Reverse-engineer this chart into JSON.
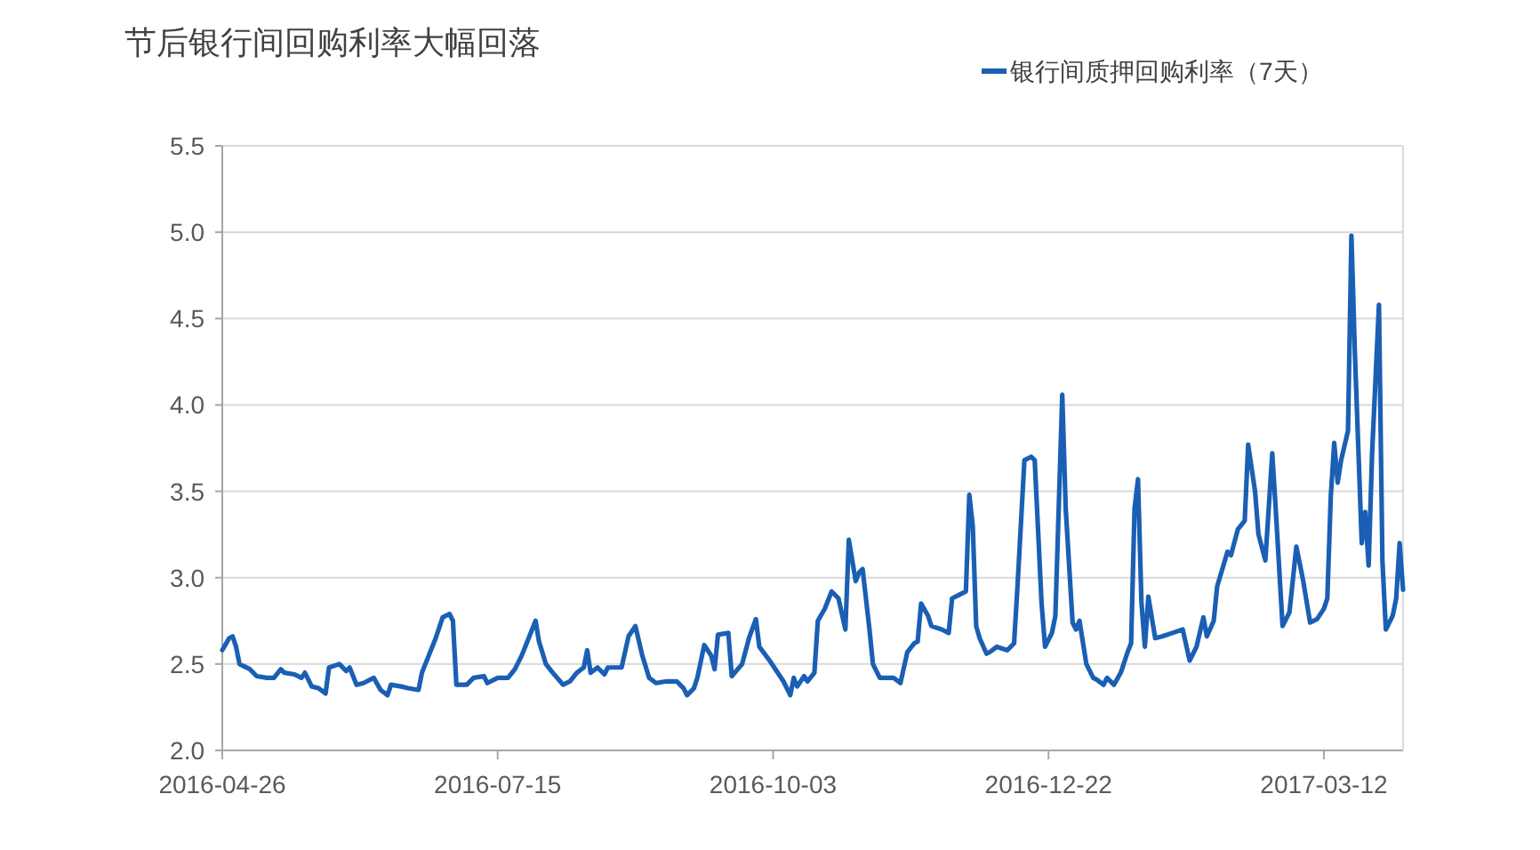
{
  "chart_data": {
    "type": "line",
    "title": "节后银行间回购利率大幅回落",
    "legend": "top right",
    "grid": "y",
    "xlim": [
      "2016-04-26",
      "2017-04-04"
    ],
    "xticks": [
      "2016-04-26",
      "2016-07-15",
      "2016-10-03",
      "2016-12-22",
      "2017-03-12"
    ],
    "ylim": [
      2.0,
      5.5
    ],
    "yticks": [
      {
        "value": 2,
        "label": "2.0"
      },
      2.5,
      {
        "value": 3,
        "label": "3.0"
      },
      3.5,
      {
        "value": 4,
        "label": "4.0"
      },
      4.5,
      {
        "value": 5,
        "label": "5.0"
      },
      5.5
    ],
    "series": [
      {
        "name": "银行间质押回购利率（7天）",
        "color": "#1a5fb4",
        "x": [
          "2016-04-26",
          "2016-04-28",
          "2016-04-29",
          "2016-04-30",
          "2016-05-01",
          "2016-05-04",
          "2016-05-06",
          "2016-05-09",
          "2016-05-11",
          "2016-05-13",
          "2016-05-14",
          "2016-05-17",
          "2016-05-19",
          "2016-05-20",
          "2016-05-22",
          "2016-05-24",
          "2016-05-26",
          "2016-05-27",
          "2016-05-30",
          "2016-06-01",
          "2016-06-02",
          "2016-06-04",
          "2016-06-06",
          "2016-06-09",
          "2016-06-11",
          "2016-06-13",
          "2016-06-14",
          "2016-06-17",
          "2016-06-19",
          "2016-06-22",
          "2016-06-23",
          "2016-06-25",
          "2016-06-27",
          "2016-06-29",
          "2016-07-01",
          "2016-07-02",
          "2016-07-03",
          "2016-07-06",
          "2016-07-08",
          "2016-07-11",
          "2016-07-12",
          "2016-07-15",
          "2016-07-18",
          "2016-07-20",
          "2016-07-22",
          "2016-07-24",
          "2016-07-26",
          "2016-07-27",
          "2016-07-29",
          "2016-07-31",
          "2016-08-03",
          "2016-08-05",
          "2016-08-07",
          "2016-08-09",
          "2016-08-10",
          "2016-08-11",
          "2016-08-13",
          "2016-08-15",
          "2016-08-16",
          "2016-08-20",
          "2016-08-22",
          "2016-08-24",
          "2016-08-26",
          "2016-08-28",
          "2016-08-30",
          "2016-09-02",
          "2016-09-05",
          "2016-09-07",
          "2016-09-08",
          "2016-09-10",
          "2016-09-11",
          "2016-09-13",
          "2016-09-15",
          "2016-09-16",
          "2016-09-17",
          "2016-09-20",
          "2016-09-21",
          "2016-09-24",
          "2016-09-26",
          "2016-09-28",
          "2016-09-29",
          "2016-10-02",
          "2016-10-06",
          "2016-10-08",
          "2016-10-09",
          "2016-10-10",
          "2016-10-12",
          "2016-10-13",
          "2016-10-15",
          "2016-10-16",
          "2016-10-18",
          "2016-10-20",
          "2016-10-22",
          "2016-10-24",
          "2016-10-25",
          "2016-10-27",
          "2016-10-28",
          "2016-10-29",
          "2016-10-31",
          "2016-11-01",
          "2016-11-03",
          "2016-11-07",
          "2016-11-09",
          "2016-11-11",
          "2016-11-13",
          "2016-11-14",
          "2016-11-15",
          "2016-11-17",
          "2016-11-18",
          "2016-11-21",
          "2016-11-23",
          "2016-11-24",
          "2016-11-26",
          "2016-11-28",
          "2016-11-29",
          "2016-11-30",
          "2016-12-01",
          "2016-12-02",
          "2016-12-04",
          "2016-12-05",
          "2016-12-07",
          "2016-12-10",
          "2016-12-12",
          "2016-12-13",
          "2016-12-15",
          "2016-12-17",
          "2016-12-18",
          "2016-12-20",
          "2016-12-21",
          "2016-12-23",
          "2016-12-24",
          "2016-12-26",
          "2016-12-27",
          "2016-12-29",
          "2016-12-30",
          "2016-12-31",
          "2017-01-02",
          "2017-01-04",
          "2017-01-05",
          "2017-01-07",
          "2017-01-08",
          "2017-01-10",
          "2017-01-12",
          "2017-01-14",
          "2017-01-15",
          "2017-01-16",
          "2017-01-17",
          "2017-01-18",
          "2017-01-19",
          "2017-01-20",
          "2017-01-22",
          "2017-01-24",
          "2017-01-27",
          "2017-01-30",
          "2017-02-01",
          "2017-02-03",
          "2017-02-05",
          "2017-02-06",
          "2017-02-08",
          "2017-02-09",
          "2017-02-12",
          "2017-02-13",
          "2017-02-15",
          "2017-02-17",
          "2017-02-18",
          "2017-02-20",
          "2017-02-21",
          "2017-02-23",
          "2017-02-25",
          "2017-02-26",
          "2017-02-28",
          "2017-03-02",
          "2017-03-04",
          "2017-03-06",
          "2017-03-08",
          "2017-03-10",
          "2017-03-12",
          "2017-03-13",
          "2017-03-14",
          "2017-03-15",
          "2017-03-16",
          "2017-03-17",
          "2017-03-19",
          "2017-03-20",
          "2017-03-21",
          "2017-03-23",
          "2017-03-24",
          "2017-03-25",
          "2017-03-26",
          "2017-03-27",
          "2017-03-28",
          "2017-03-29",
          "2017-03-30",
          "2017-04-01",
          "2017-04-02",
          "2017-04-03",
          "2017-04-04"
        ],
        "values": [
          2.58,
          2.65,
          2.66,
          2.6,
          2.5,
          2.47,
          2.43,
          2.42,
          2.42,
          2.47,
          2.45,
          2.44,
          2.42,
          2.45,
          2.37,
          2.36,
          2.33,
          2.48,
          2.5,
          2.46,
          2.48,
          2.38,
          2.39,
          2.42,
          2.35,
          2.32,
          2.38,
          2.37,
          2.36,
          2.35,
          2.45,
          2.55,
          2.65,
          2.77,
          2.79,
          2.75,
          2.38,
          2.38,
          2.42,
          2.43,
          2.39,
          2.42,
          2.42,
          2.47,
          2.55,
          2.65,
          2.75,
          2.63,
          2.5,
          2.45,
          2.38,
          2.4,
          2.45,
          2.48,
          2.58,
          2.45,
          2.48,
          2.44,
          2.48,
          2.48,
          2.66,
          2.72,
          2.55,
          2.42,
          2.39,
          2.4,
          2.4,
          2.36,
          2.32,
          2.36,
          2.42,
          2.61,
          2.55,
          2.47,
          2.67,
          2.68,
          2.43,
          2.5,
          2.65,
          2.76,
          2.6,
          2.52,
          2.4,
          2.32,
          2.42,
          2.37,
          2.43,
          2.4,
          2.45,
          2.75,
          2.82,
          2.92,
          2.88,
          2.7,
          3.22,
          2.98,
          3.03,
          3.05,
          2.7,
          2.5,
          2.42,
          2.42,
          2.39,
          2.57,
          2.62,
          2.63,
          2.85,
          2.78,
          2.72,
          2.7,
          2.68,
          2.88,
          2.9,
          2.92,
          3.48,
          3.3,
          2.72,
          2.65,
          2.56,
          2.57,
          2.6,
          2.58,
          2.62,
          2.95,
          3.68,
          3.7,
          3.68,
          2.85,
          2.6,
          2.68,
          2.78,
          4.06,
          3.4,
          2.74,
          2.7,
          2.75,
          2.5,
          2.42,
          2.41,
          2.38,
          2.42,
          2.38,
          2.45,
          2.57,
          2.62,
          3.4,
          3.57,
          2.86,
          2.6,
          2.89,
          2.65,
          2.66,
          2.68,
          2.7,
          2.52,
          2.6,
          2.77,
          2.66,
          2.75,
          2.95,
          3.15,
          3.13,
          3.28,
          3.33,
          3.77,
          3.5,
          3.25,
          3.1,
          3.72,
          3.4,
          2.72,
          2.8,
          3.18,
          2.98,
          2.74,
          2.76,
          2.82,
          2.88,
          3.47,
          3.78,
          3.55,
          3.68,
          3.85,
          4.98,
          4.3,
          3.2,
          3.38,
          3.07,
          3.72,
          4.15,
          4.58,
          3.1,
          2.7,
          2.78,
          2.88,
          3.2,
          2.93
        ]
      }
    ]
  }
}
